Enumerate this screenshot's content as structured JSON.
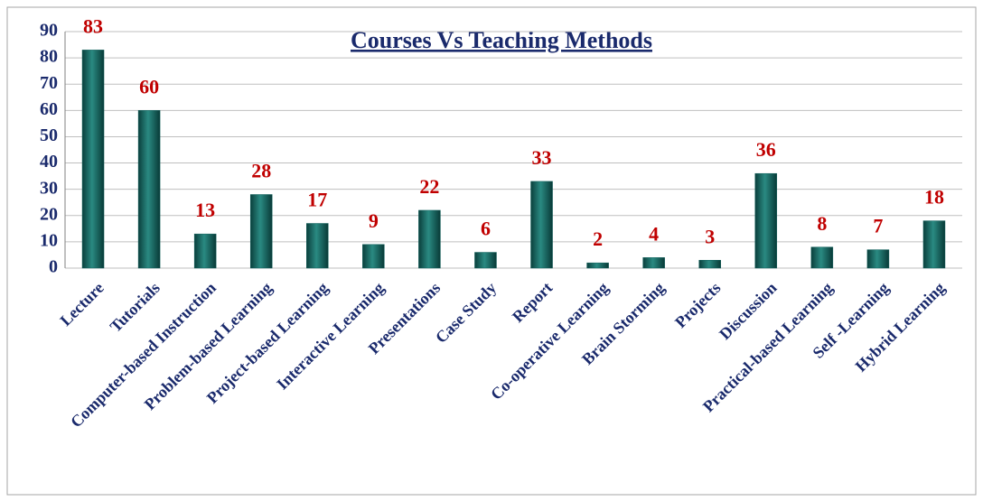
{
  "chart_data": {
    "type": "bar",
    "title": "Courses Vs Teaching Methods",
    "categories": [
      "Lecture",
      "Tutorials",
      "Computer-based Instruction",
      "Problem-based Learning",
      "Project-based Learning",
      "Interactive Learning",
      "Presentations",
      "Case Study",
      "Report",
      "Co-operative Learning",
      "Brain Storming",
      "Projects",
      "Discussion",
      "Practical-based Learning",
      "Self -Learning",
      "Hybrid Learning"
    ],
    "values": [
      83,
      60,
      13,
      28,
      17,
      9,
      22,
      6,
      33,
      2,
      4,
      3,
      36,
      8,
      7,
      18
    ],
    "color": "#0f5f5a",
    "ylim": [
      0,
      90
    ],
    "yticks": [
      0,
      10,
      20,
      30,
      40,
      50,
      60,
      70,
      80,
      90
    ],
    "grid": true
  }
}
